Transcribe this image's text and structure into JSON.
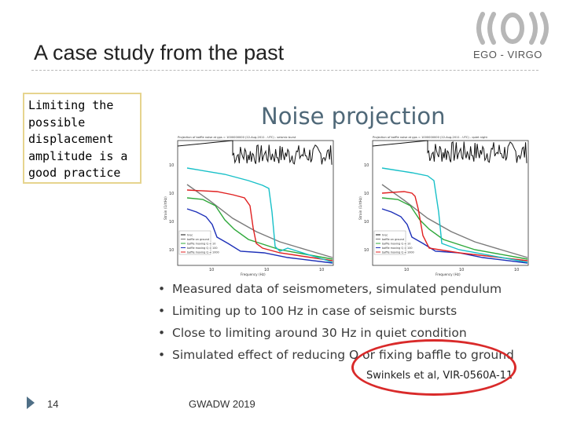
{
  "slide": {
    "title": "A case study from the past",
    "organization": "EGO - VIRGO",
    "callout": [
      "Limiting the",
      "possible",
      "displacement",
      "amplitude is a",
      "good practice"
    ],
    "figure": {
      "title": "Noise projection",
      "plots": [
        {
          "header": "Projection of baffle noise at gps = 1000000000 (22-Aug-2011 - UTC) - seismic burst",
          "xlabel": "Frequency (Hz)",
          "ylabel": "Strain (1/rtHz)",
          "legend": [
            "hrec",
            "baffle on ground",
            "baffle moving Q = 10",
            "baffle moving Q = 100",
            "baffle moving Q = 1000"
          ]
        },
        {
          "header": "Projection of baffle noise at gps = 1000000000 (22-Aug-2011 - UTC) - quiet night",
          "xlabel": "Frequency (Hz)",
          "ylabel": "Strain (1/rtHz)",
          "legend": [
            "hrec",
            "baffle on ground",
            "baffle moving Q = 10",
            "baffle moving Q = 100",
            "baffle moving Q = 1000"
          ]
        }
      ],
      "series_colors": [
        "#111111",
        "#7a7a7a",
        "#2ea83a",
        "#1c2fb8",
        "#e02020",
        "#18c0c8"
      ],
      "bullets": [
        "Measured data of seismometers, simulated pendulum",
        "Limiting up to 100 Hz in case of seismic bursts",
        "Close to limiting around 30 Hz in quiet condition",
        "Simulated effect of reducing Q or fixing baffle to ground"
      ],
      "citation": "Swinkels et al, VIR-0560A-11"
    },
    "footer": {
      "slide_number": "14",
      "event": "GWADW 2019"
    }
  }
}
